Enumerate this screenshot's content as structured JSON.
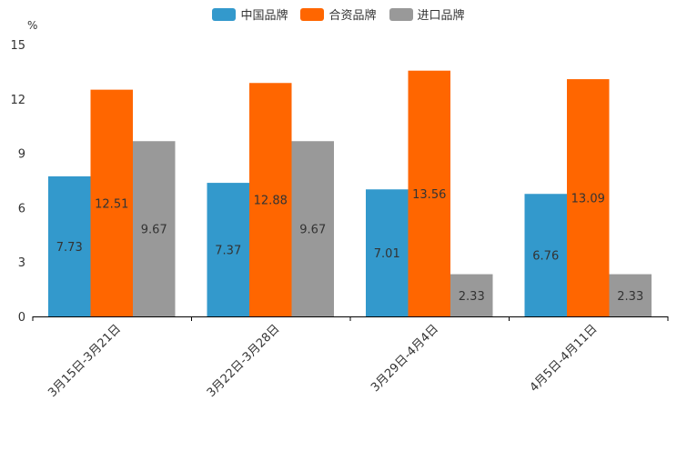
{
  "chart_data": {
    "type": "bar",
    "unit": "%",
    "categories": [
      "3月15日-3月21日",
      "3月22日-3月28日",
      "3月29日-4月4日",
      "4月5日-4月11日"
    ],
    "series": [
      {
        "name": "中国品牌",
        "color": "#3399cc",
        "values": [
          7.73,
          7.37,
          7.01,
          6.76
        ]
      },
      {
        "name": "合资品牌",
        "color": "#ff6600",
        "values": [
          12.51,
          12.88,
          13.56,
          13.09
        ]
      },
      {
        "name": "进口品牌",
        "color": "#999999",
        "values": [
          9.67,
          9.67,
          2.33,
          2.33
        ]
      }
    ],
    "ylim": [
      0,
      15
    ],
    "yticks": [
      0,
      3,
      6,
      9,
      12,
      15
    ],
    "legend_position": "top-center"
  }
}
